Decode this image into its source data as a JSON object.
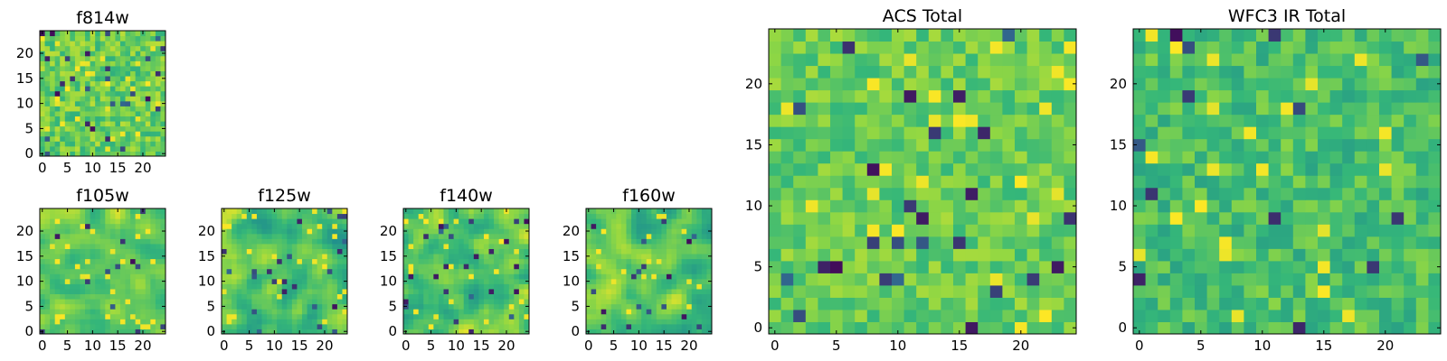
{
  "colormap": [
    "#440154",
    "#31688e",
    "#21918c",
    "#35b779",
    "#90d743",
    "#fde725"
  ],
  "chart_data": [
    {
      "type": "heatmap",
      "title": "f814w",
      "grid_size": 25,
      "xticks": [
        0,
        5,
        10,
        15,
        20
      ],
      "yticks": [
        0,
        5,
        10,
        15,
        20
      ],
      "xlim": [
        0,
        25
      ],
      "ylim": [
        0,
        25
      ],
      "texture": "pixel",
      "seed": 11,
      "mean": 0.72,
      "spread": 0.16,
      "dark_fraction": 0.05
    },
    {
      "type": "heatmap",
      "title": "f105w",
      "grid_size": 25,
      "xticks": [
        0,
        5,
        10,
        15,
        20
      ],
      "yticks": [
        0,
        5,
        10,
        15,
        20
      ],
      "xlim": [
        0,
        25
      ],
      "ylim": [
        0,
        25
      ],
      "texture": "smooth",
      "seed": 23,
      "mean": 0.74,
      "spread": 0.2,
      "dark_fraction": 0.02
    },
    {
      "type": "heatmap",
      "title": "f125w",
      "grid_size": 25,
      "xticks": [
        0,
        5,
        10,
        15,
        20
      ],
      "yticks": [
        0,
        5,
        10,
        15,
        20
      ],
      "xlim": [
        0,
        25
      ],
      "ylim": [
        0,
        25
      ],
      "texture": "smooth",
      "seed": 37,
      "mean": 0.66,
      "spread": 0.26,
      "dark_fraction": 0.04
    },
    {
      "type": "heatmap",
      "title": "f140w",
      "grid_size": 25,
      "xticks": [
        0,
        5,
        10,
        15,
        20
      ],
      "yticks": [
        0,
        5,
        10,
        15,
        20
      ],
      "xlim": [
        0,
        25
      ],
      "ylim": [
        0,
        25
      ],
      "texture": "smooth",
      "seed": 41,
      "mean": 0.7,
      "spread": 0.25,
      "dark_fraction": 0.04
    },
    {
      "type": "heatmap",
      "title": "f160w",
      "grid_size": 25,
      "xticks": [
        0,
        5,
        10,
        15,
        20
      ],
      "yticks": [
        0,
        5,
        10,
        15,
        20
      ],
      "xlim": [
        0,
        25
      ],
      "ylim": [
        0,
        25
      ],
      "texture": "smooth",
      "seed": 53,
      "mean": 0.68,
      "spread": 0.24,
      "dark_fraction": 0.04
    },
    {
      "type": "heatmap",
      "title": "ACS Total",
      "grid_size": 25,
      "xticks": [
        0,
        5,
        10,
        15,
        20
      ],
      "yticks": [
        0,
        5,
        10,
        15,
        20
      ],
      "xlim": [
        0,
        25
      ],
      "ylim": [
        0,
        25
      ],
      "texture": "pixel",
      "seed": 67,
      "mean": 0.72,
      "spread": 0.13,
      "dark_fraction": 0.025
    },
    {
      "type": "heatmap",
      "title": "WFC3 IR Total",
      "grid_size": 25,
      "xticks": [
        0,
        5,
        10,
        15,
        20
      ],
      "yticks": [
        0,
        5,
        10,
        15,
        20
      ],
      "xlim": [
        0,
        25
      ],
      "ylim": [
        0,
        25
      ],
      "texture": "pixel",
      "seed": 79,
      "mean": 0.64,
      "spread": 0.15,
      "dark_fraction": 0.035
    }
  ]
}
